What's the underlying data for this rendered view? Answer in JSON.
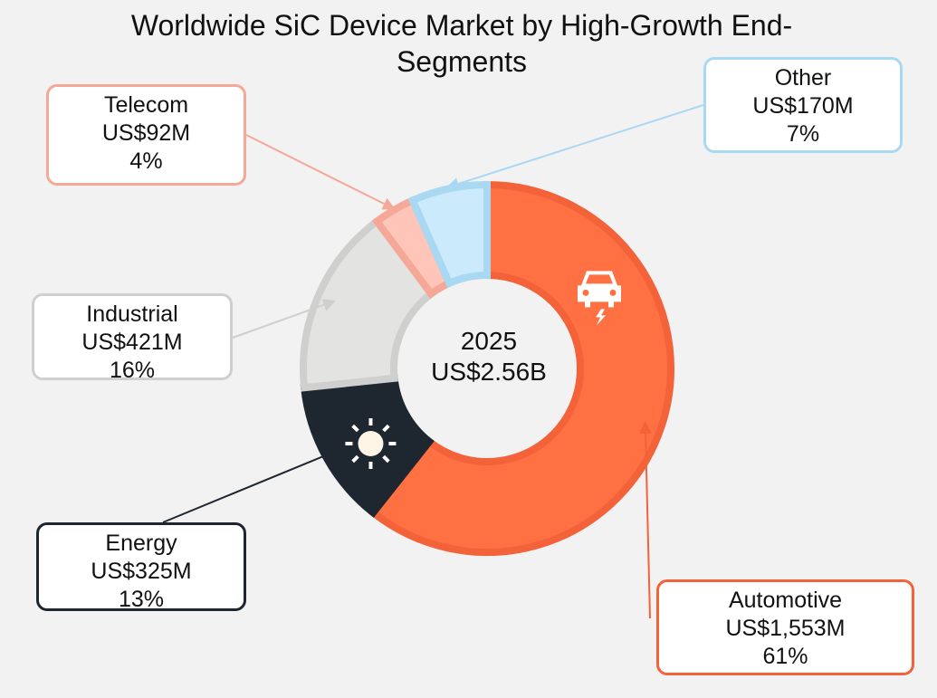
{
  "chart_data": {
    "type": "pie",
    "title": "Worldwide SiC Device Market by High-Growth End-Segments",
    "center_label": {
      "year": "2025",
      "total": "US$2.56B"
    },
    "slices": [
      {
        "name": "Automotive",
        "value_label": "US$1,553M",
        "percent_label": "61%",
        "value": 1553,
        "percent": 61,
        "color": "#ff7043",
        "stroke": "#f4623a",
        "icon": "electric-car-icon"
      },
      {
        "name": "Energy",
        "value_label": "US$325M",
        "percent_label": "13%",
        "value": 325,
        "percent": 13,
        "color": "#1e2630",
        "stroke": "#1e2630",
        "icon": "sun-icon"
      },
      {
        "name": "Industrial",
        "value_label": "US$421M",
        "percent_label": "16%",
        "value": 421,
        "percent": 16,
        "color": "#e3e3e1",
        "stroke": "#cfcfcd",
        "icon": ""
      },
      {
        "name": "Telecom",
        "value_label": "US$92M",
        "percent_label": "4%",
        "value": 92,
        "percent": 4,
        "color": "#ffc5b8",
        "stroke": "#f5a898",
        "icon": ""
      },
      {
        "name": "Other",
        "value_label": "US$170M",
        "percent_label": "7%",
        "value": 170,
        "percent": 7,
        "color": "#cbeafb",
        "stroke": "#a9d8f2",
        "icon": ""
      }
    ]
  },
  "colors": {
    "background": "#f2f2f2",
    "text": "#111111"
  }
}
